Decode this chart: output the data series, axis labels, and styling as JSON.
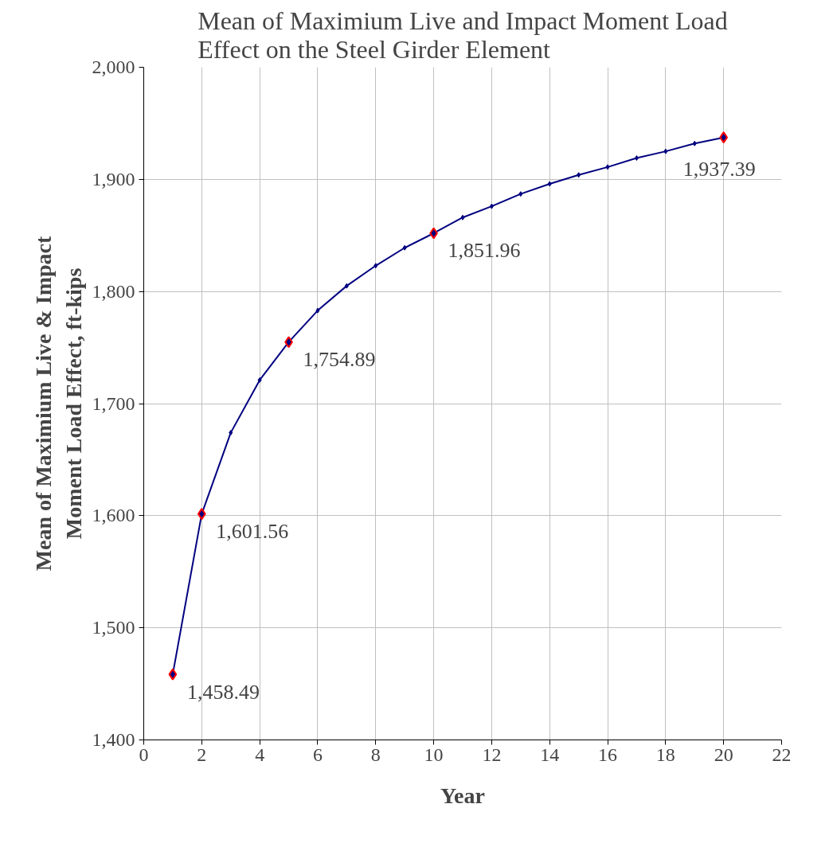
{
  "chart_data": {
    "type": "line",
    "title": "Mean of Maximium Live and Impact Moment Load\nEffect on the Steel Girder Element",
    "xlabel": "Year",
    "ylabel": "Mean of Maximium Live & Impact\nMoment Load Effect, ft-kips",
    "xlim": [
      0,
      22
    ],
    "xticks": [
      0,
      2,
      4,
      6,
      8,
      10,
      12,
      14,
      16,
      18,
      20,
      22
    ],
    "ylim": [
      1400,
      2000
    ],
    "yticks": [
      {
        "value": 1400,
        "label": "1,400"
      },
      {
        "value": 1500,
        "label": "1,500"
      },
      {
        "value": 1600,
        "label": "1,600"
      },
      {
        "value": 1700,
        "label": "1,700"
      },
      {
        "value": 1800,
        "label": "1,800"
      },
      {
        "value": 1900,
        "label": "1,900"
      },
      {
        "value": 2000,
        "label": "2,000"
      }
    ],
    "grid": true,
    "marker": "diamond",
    "line_style": "solid",
    "series": [
      {
        "color": "#000080",
        "x": [
          1,
          2,
          3,
          4,
          5,
          6,
          7,
          8,
          9,
          10,
          11,
          12,
          13,
          14,
          15,
          16,
          17,
          18,
          19,
          20
        ],
        "values": [
          1458.49,
          1601.56,
          1674,
          1721,
          1754.89,
          1783,
          1805,
          1823,
          1839,
          1851.96,
          1866,
          1876,
          1887,
          1896,
          1904,
          1911,
          1919,
          1925,
          1932,
          1937.39
        ]
      },
      {
        "type": "scatter",
        "color": "#ff0000",
        "x": [
          1,
          2,
          5,
          10,
          20
        ],
        "values": [
          1458.49,
          1601.56,
          1754.89,
          1851.96,
          1937.39
        ],
        "value_labels": [
          "1,458.49",
          "1,601.56",
          "1,754.89",
          "1,851.96",
          "1,937.39"
        ]
      }
    ]
  }
}
